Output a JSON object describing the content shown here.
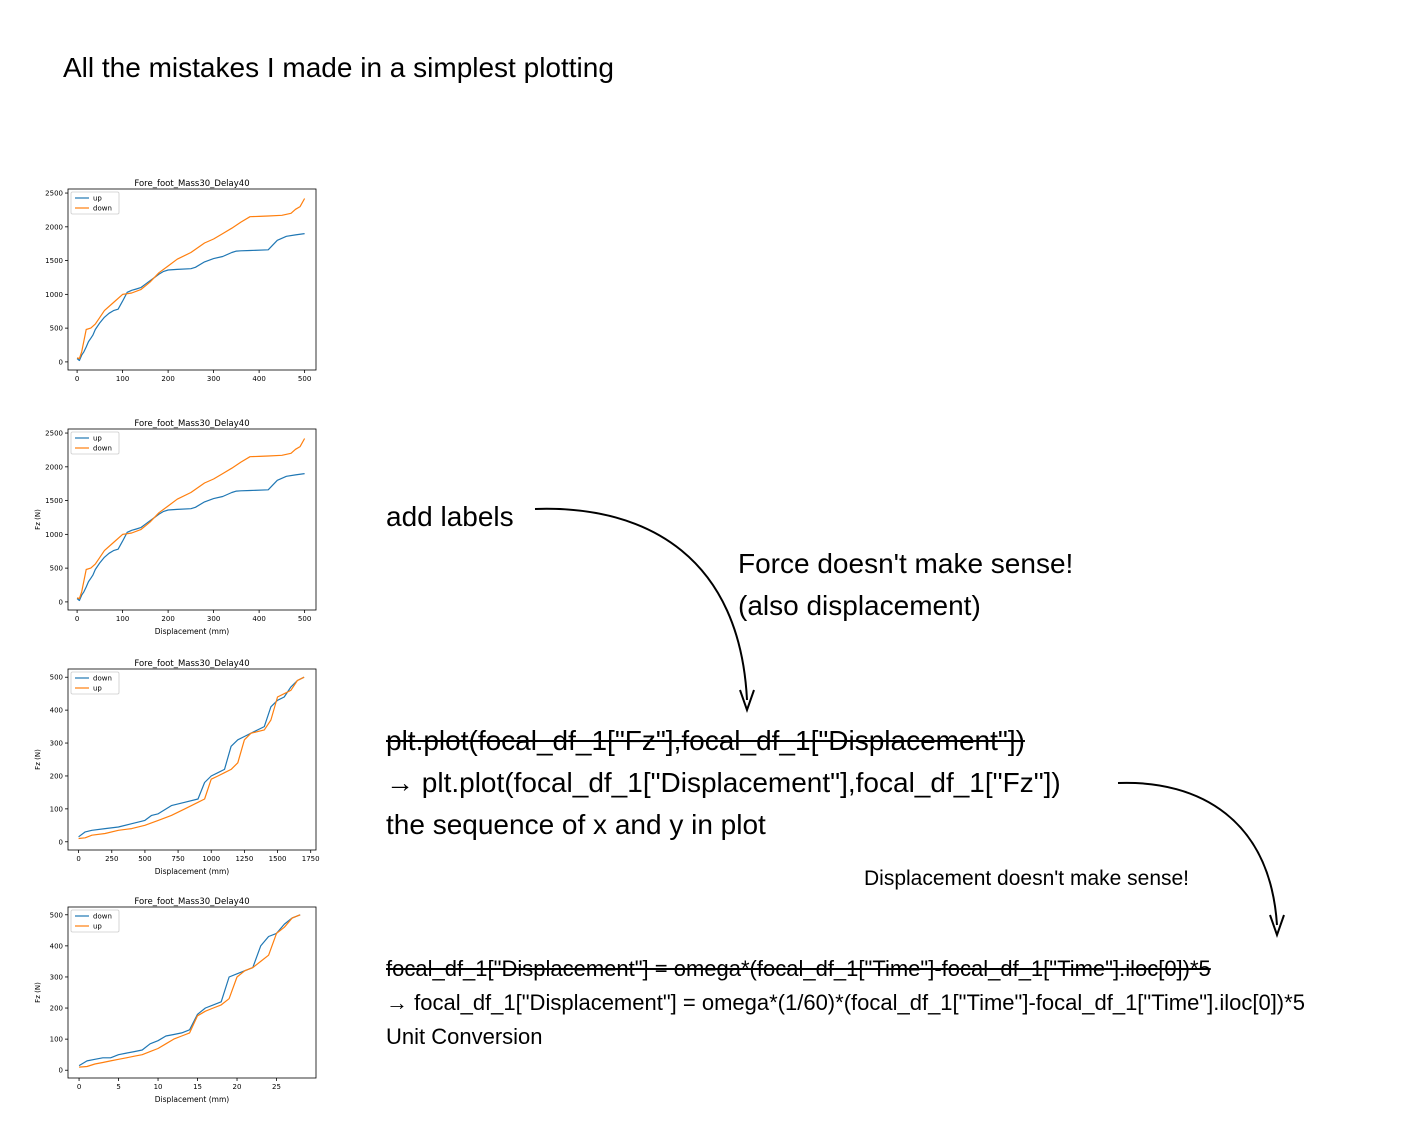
{
  "title": "All the mistakes I made in a simplest plotting",
  "chart_data": [
    {
      "type": "line",
      "title": "Fore_foot_Mass30_Delay40",
      "xlabel": "",
      "ylabel": "",
      "xlim": [
        -20,
        525
      ],
      "ylim": [
        -120,
        2560
      ],
      "xticks": [
        0,
        100,
        200,
        300,
        400,
        500
      ],
      "yticks": [
        0,
        500,
        1000,
        1500,
        2000,
        2500
      ],
      "legend": "top-left",
      "series": [
        {
          "name": "up",
          "color": "#1f77b4",
          "x": [
            0,
            5,
            10,
            15,
            20,
            25,
            30,
            35,
            40,
            50,
            60,
            70,
            80,
            90,
            100,
            110,
            120,
            130,
            140,
            150,
            160,
            170,
            180,
            190,
            200,
            220,
            250,
            260,
            280,
            300,
            320,
            340,
            350,
            360,
            380,
            420,
            440,
            460,
            480,
            500
          ],
          "y": [
            50,
            20,
            100,
            150,
            220,
            300,
            350,
            400,
            480,
            580,
            660,
            720,
            760,
            780,
            900,
            1030,
            1060,
            1080,
            1100,
            1150,
            1200,
            1250,
            1300,
            1340,
            1360,
            1370,
            1380,
            1400,
            1480,
            1530,
            1560,
            1620,
            1640,
            1645,
            1650,
            1660,
            1800,
            1860,
            1880,
            1900
          ]
        },
        {
          "name": "down",
          "color": "#ff7f0e",
          "x": [
            0,
            5,
            10,
            20,
            30,
            40,
            50,
            60,
            80,
            100,
            120,
            140,
            160,
            180,
            200,
            220,
            250,
            280,
            300,
            320,
            340,
            360,
            380,
            400,
            420,
            450,
            470,
            480,
            490,
            500
          ],
          "y": [
            60,
            50,
            150,
            480,
            500,
            560,
            660,
            760,
            880,
            1000,
            1020,
            1070,
            1180,
            1320,
            1420,
            1520,
            1620,
            1760,
            1820,
            1900,
            1980,
            2070,
            2150,
            2155,
            2160,
            2170,
            2200,
            2260,
            2300,
            2420
          ]
        }
      ]
    },
    {
      "type": "line",
      "title": "Fore_foot_Mass30_Delay40",
      "xlabel": "Displacement (mm)",
      "ylabel": "Fz (N)",
      "xlim": [
        -20,
        525
      ],
      "ylim": [
        -120,
        2560
      ],
      "xticks": [
        0,
        100,
        200,
        300,
        400,
        500
      ],
      "yticks": [
        0,
        500,
        1000,
        1500,
        2000,
        2500
      ],
      "legend": "top-left",
      "series": [
        {
          "name": "up",
          "color": "#1f77b4",
          "x": [
            0,
            5,
            10,
            15,
            20,
            25,
            30,
            35,
            40,
            50,
            60,
            70,
            80,
            90,
            100,
            110,
            120,
            130,
            140,
            150,
            160,
            170,
            180,
            190,
            200,
            220,
            250,
            260,
            280,
            300,
            320,
            340,
            350,
            360,
            380,
            420,
            440,
            460,
            480,
            500
          ],
          "y": [
            50,
            20,
            100,
            150,
            220,
            300,
            350,
            400,
            480,
            580,
            660,
            720,
            760,
            780,
            900,
            1030,
            1060,
            1080,
            1100,
            1150,
            1200,
            1250,
            1300,
            1340,
            1360,
            1370,
            1380,
            1400,
            1480,
            1530,
            1560,
            1620,
            1640,
            1645,
            1650,
            1660,
            1800,
            1860,
            1880,
            1900
          ]
        },
        {
          "name": "down",
          "color": "#ff7f0e",
          "x": [
            0,
            5,
            10,
            20,
            30,
            40,
            50,
            60,
            80,
            100,
            120,
            140,
            160,
            180,
            200,
            220,
            250,
            280,
            300,
            320,
            340,
            360,
            380,
            400,
            420,
            450,
            470,
            480,
            490,
            500
          ],
          "y": [
            60,
            50,
            150,
            480,
            500,
            560,
            660,
            760,
            880,
            1000,
            1020,
            1070,
            1180,
            1320,
            1420,
            1520,
            1620,
            1760,
            1820,
            1900,
            1980,
            2070,
            2150,
            2155,
            2160,
            2170,
            2200,
            2260,
            2300,
            2420
          ]
        }
      ]
    },
    {
      "type": "line",
      "title": "Fore_foot_Mass30_Delay40",
      "xlabel": "Displacement (mm)",
      "ylabel": "Fz (N)",
      "xlim": [
        -80,
        1790
      ],
      "ylim": [
        -25,
        525
      ],
      "xticks": [
        0,
        250,
        500,
        750,
        1000,
        1250,
        1500,
        1750
      ],
      "yticks": [
        0,
        100,
        200,
        300,
        400,
        500
      ],
      "legend": "top-left",
      "series": [
        {
          "name": "down",
          "color": "#1f77b4",
          "x": [
            0,
            50,
            100,
            200,
            300,
            400,
            500,
            550,
            600,
            700,
            800,
            900,
            950,
            1000,
            1050,
            1100,
            1150,
            1200,
            1250,
            1300,
            1400,
            1450,
            1500,
            1550,
            1600,
            1650,
            1700
          ],
          "y": [
            15,
            30,
            35,
            40,
            45,
            55,
            65,
            80,
            85,
            110,
            120,
            130,
            180,
            200,
            210,
            220,
            290,
            310,
            320,
            330,
            350,
            410,
            430,
            440,
            470,
            490,
            500
          ]
        },
        {
          "name": "up",
          "color": "#ff7f0e",
          "x": [
            0,
            50,
            100,
            200,
            300,
            400,
            500,
            600,
            700,
            800,
            900,
            950,
            1000,
            1050,
            1100,
            1150,
            1200,
            1250,
            1300,
            1400,
            1450,
            1500,
            1550,
            1600,
            1650,
            1700
          ],
          "y": [
            10,
            12,
            20,
            25,
            35,
            40,
            50,
            65,
            80,
            100,
            120,
            130,
            190,
            200,
            210,
            220,
            240,
            310,
            330,
            340,
            370,
            440,
            450,
            460,
            490,
            500
          ]
        }
      ]
    },
    {
      "type": "line",
      "title": "Fore_foot_Mass30_Delay40",
      "xlabel": "Displacement (mm)",
      "ylabel": "Fz (N)",
      "xlim": [
        -1.4,
        30
      ],
      "ylim": [
        -25,
        525
      ],
      "xticks": [
        0,
        5,
        10,
        15,
        20,
        25
      ],
      "yticks": [
        0,
        100,
        200,
        300,
        400,
        500
      ],
      "legend": "top-left",
      "series": [
        {
          "name": "down",
          "color": "#1f77b4",
          "x": [
            0,
            1,
            2,
            3,
            4,
            5,
            6,
            7,
            8,
            9,
            10,
            11,
            12,
            13,
            14,
            15,
            16,
            17,
            18,
            19,
            20,
            21,
            22,
            23,
            24,
            25,
            26,
            27,
            28
          ],
          "y": [
            15,
            30,
            35,
            40,
            40,
            50,
            55,
            60,
            65,
            85,
            95,
            110,
            115,
            120,
            130,
            180,
            200,
            210,
            220,
            300,
            310,
            320,
            330,
            400,
            430,
            440,
            470,
            490,
            500
          ]
        },
        {
          "name": "up",
          "color": "#ff7f0e",
          "x": [
            0,
            1,
            2,
            3,
            4,
            5,
            6,
            7,
            8,
            9,
            10,
            11,
            12,
            13,
            14,
            15,
            16,
            17,
            18,
            19,
            20,
            21,
            22,
            23,
            24,
            25,
            26,
            27,
            28
          ],
          "y": [
            10,
            12,
            20,
            25,
            30,
            35,
            40,
            45,
            50,
            60,
            70,
            85,
            100,
            110,
            120,
            175,
            190,
            200,
            210,
            230,
            300,
            320,
            330,
            350,
            370,
            440,
            460,
            490,
            500
          ]
        }
      ]
    }
  ],
  "notes": {
    "add_labels": "add labels",
    "force_line1": "Force doesn't make sense!",
    "force_line2": "(also displacement)",
    "code1_old": "plt.plot(focal_df_1[\"Fz\"],focal_df_1[\"Displacement\"])",
    "code1_new": "→ plt.plot(focal_df_1[\"Displacement\"],focal_df_1[\"Fz\"])",
    "code1_caption": "the sequence of x and y in plot",
    "displacement_note": "Displacement doesn't make sense!",
    "code2_old": "focal_df_1[\"Displacement\"] = omega*(focal_df_1[\"Time\"]-focal_df_1[\"Time\"].iloc[0])*5",
    "code2_new": "→ focal_df_1[\"Displacement\"] = omega*(1/60)*(focal_df_1[\"Time\"]-focal_df_1[\"Time\"].iloc[0])*5",
    "code2_caption": "Unit Conversion"
  }
}
